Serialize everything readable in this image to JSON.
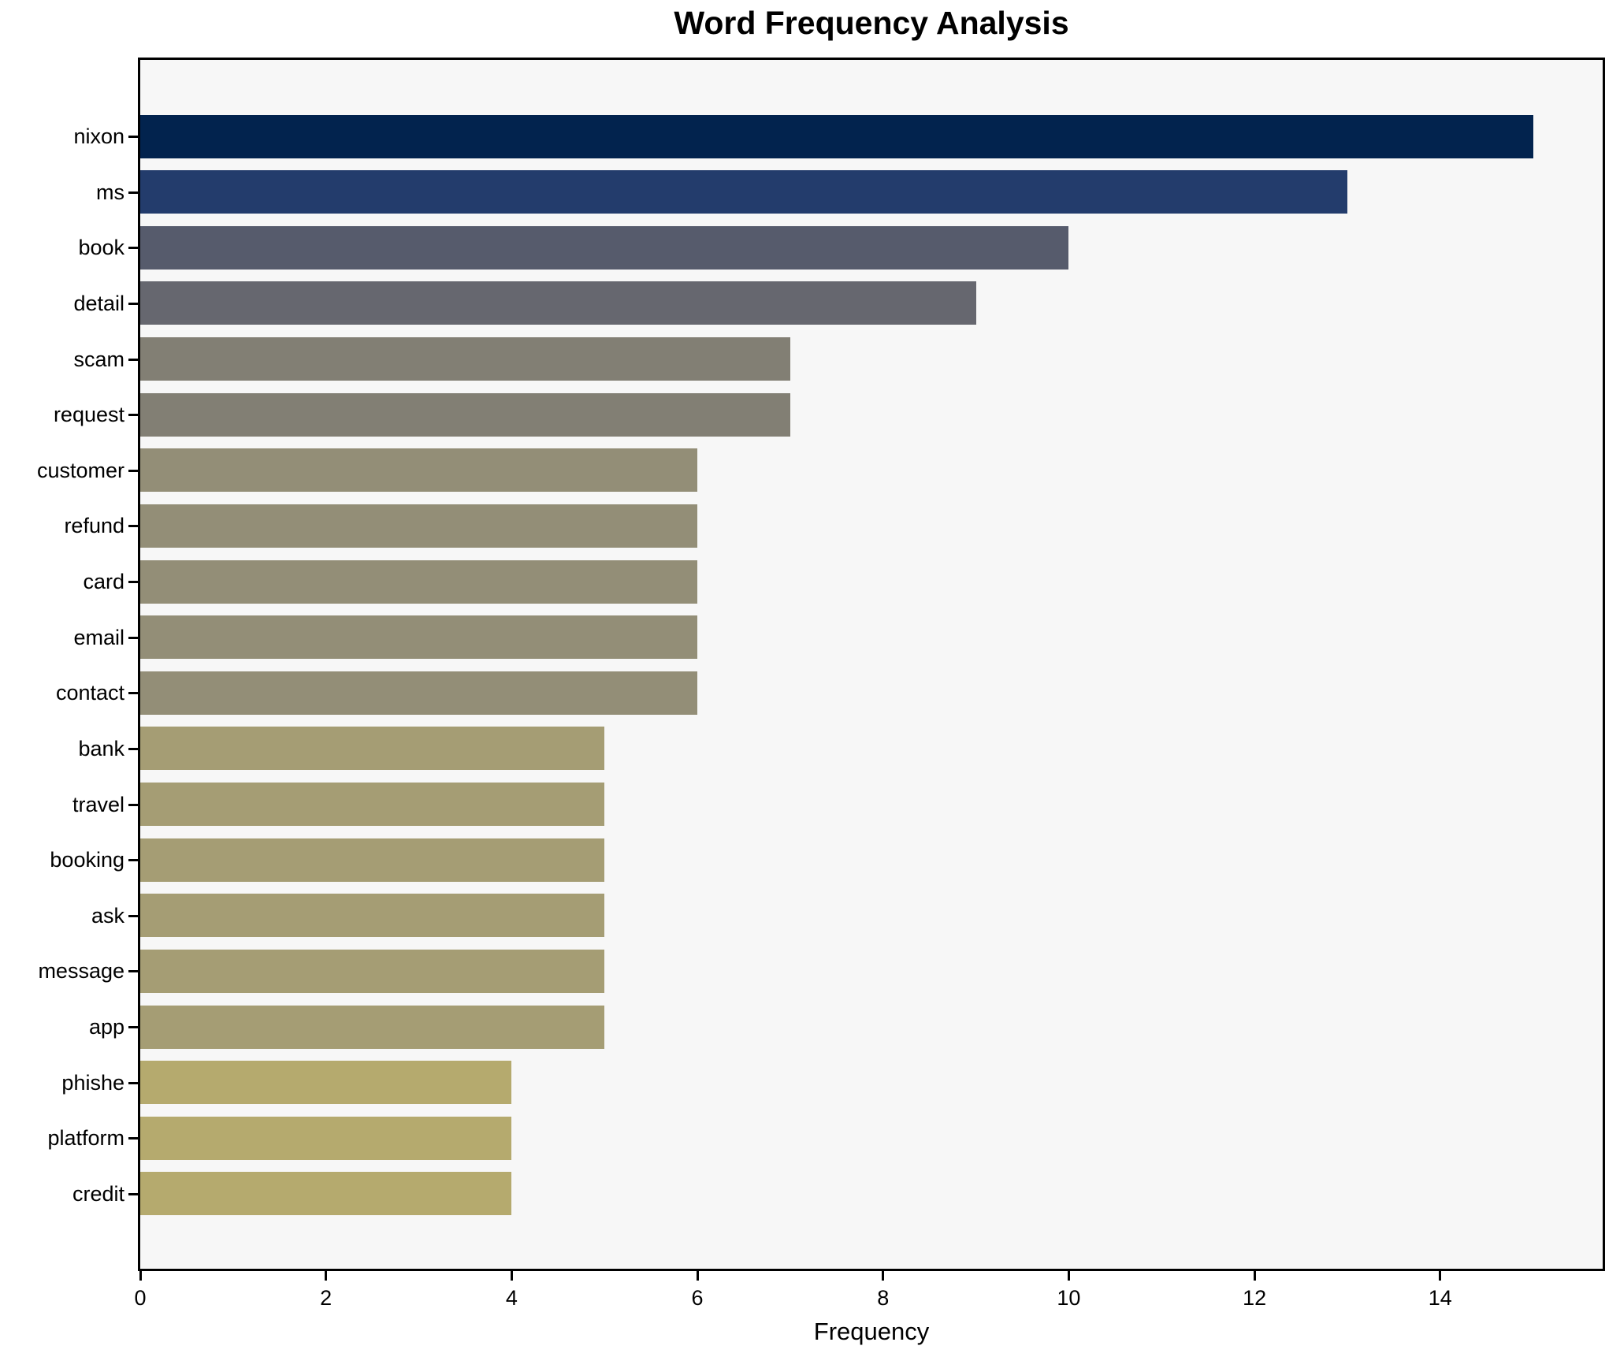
{
  "chart_data": {
    "type": "bar",
    "orientation": "horizontal",
    "title": "Word Frequency Analysis",
    "xlabel": "Frequency",
    "ylabel": "",
    "categories": [
      "nixon",
      "ms",
      "book",
      "detail",
      "scam",
      "request",
      "customer",
      "refund",
      "card",
      "email",
      "contact",
      "bank",
      "travel",
      "booking",
      "ask",
      "message",
      "app",
      "phishe",
      "platform",
      "credit"
    ],
    "values": [
      15,
      13,
      10,
      9,
      7,
      7,
      6,
      6,
      6,
      6,
      6,
      5,
      5,
      5,
      5,
      5,
      5,
      4,
      4,
      4
    ],
    "bar_colors": [
      "#02234e",
      "#233c6c",
      "#565b6c",
      "#66676f",
      "#827f74",
      "#827f74",
      "#938e77",
      "#938e77",
      "#938e77",
      "#938e77",
      "#938e77",
      "#a59d74",
      "#a59d74",
      "#a59d74",
      "#a59d74",
      "#a59d74",
      "#a59d74",
      "#b5aa6e",
      "#b5aa6e",
      "#b5aa6e"
    ],
    "xlim": [
      0,
      15.75
    ],
    "xticks": [
      0,
      2,
      4,
      6,
      8,
      10,
      12,
      14
    ],
    "grid": false,
    "legend": null,
    "plot_background": "#f7f7f7",
    "figure_background": "#ffffff",
    "colormap": "cividis"
  }
}
